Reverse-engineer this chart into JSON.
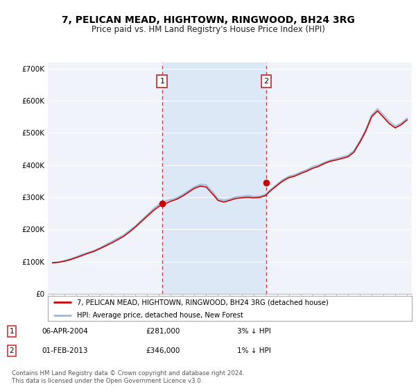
{
  "title": "7, PELICAN MEAD, HIGHTOWN, RINGWOOD, BH24 3RG",
  "subtitle": "Price paid vs. HM Land Registry's House Price Index (HPI)",
  "ylabel_ticks": [
    "£0",
    "£100K",
    "£200K",
    "£300K",
    "£400K",
    "£500K",
    "£600K",
    "£700K"
  ],
  "ylim": [
    0,
    720000
  ],
  "xlim_start": 1994.6,
  "xlim_end": 2025.4,
  "transaction1": {
    "year": 2004.27,
    "value": 281000,
    "label": "1",
    "date": "06-APR-2004",
    "amount": "£281,000",
    "hpi_diff": "3% ↓ HPI"
  },
  "transaction2": {
    "year": 2013.08,
    "value": 346000,
    "label": "2",
    "date": "01-FEB-2013",
    "amount": "£346,000",
    "hpi_diff": "1% ↓ HPI"
  },
  "legend_line1": "7, PELICAN MEAD, HIGHTOWN, RINGWOOD, BH24 3RG (detached house)",
  "legend_line2": "HPI: Average price, detached house, New Forest",
  "footnote": "Contains HM Land Registry data © Crown copyright and database right 2024.\nThis data is licensed under the Open Government Licence v3.0.",
  "line_color_red": "#cc0000",
  "line_color_blue": "#99bbdd",
  "background_plot": "#f0f4fa",
  "background_between": "#dce8f5",
  "grid_color": "#ffffff",
  "vline_color": "#cc3333",
  "title_fontsize": 10,
  "subtitle_fontsize": 9
}
